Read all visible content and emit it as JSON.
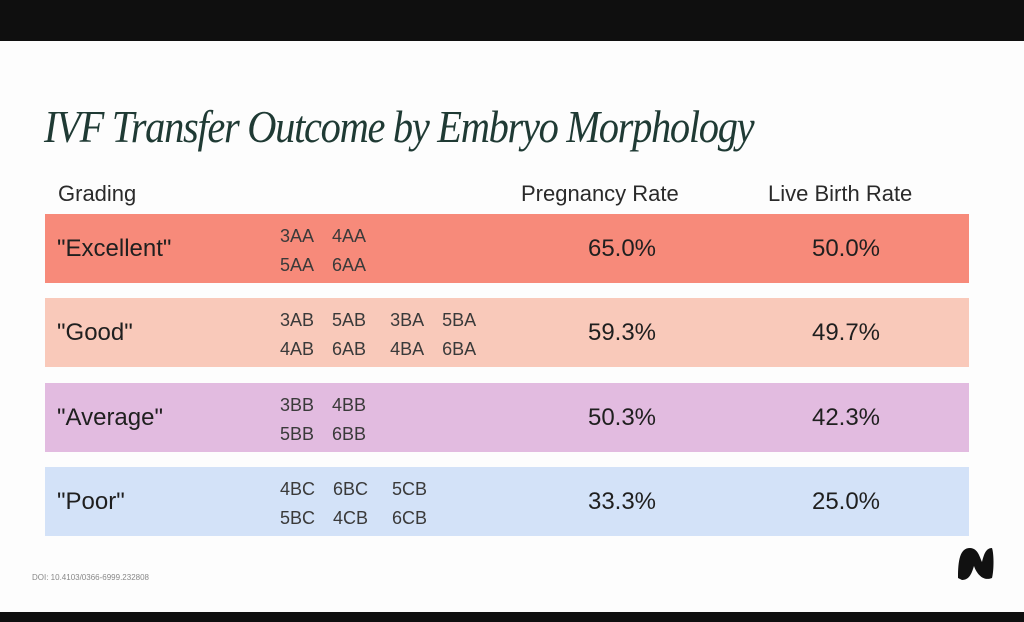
{
  "title": "IVF Transfer Outcome by Embryo Morphology",
  "headers": {
    "grading": "Grading",
    "pregnancy_rate": "Pregnancy Rate",
    "live_birth_rate": "Live Birth Rate"
  },
  "rows": [
    {
      "label": "\"Excellent\"",
      "color": "#f78a7a",
      "grade_lines": [
        [
          "3AA",
          "4AA"
        ],
        [
          "5AA",
          "6AA"
        ]
      ],
      "pregnancy_rate": "65.0%",
      "live_birth_rate": "50.0%"
    },
    {
      "label": "\"Good\"",
      "color": "#f9c9ba",
      "grade_lines": [
        [
          "3AB",
          "5AB",
          "3BA",
          "5BA"
        ],
        [
          "4AB",
          "6AB",
          "4BA",
          "6BA"
        ]
      ],
      "pregnancy_rate": "59.3%",
      "live_birth_rate": "49.7%"
    },
    {
      "label": "\"Average\"",
      "color": "#e2bbe0",
      "grade_lines": [
        [
          "3BB",
          "4BB"
        ],
        [
          "5BB",
          "6BB"
        ]
      ],
      "pregnancy_rate": "50.3%",
      "live_birth_rate": "42.3%"
    },
    {
      "label": "\"Poor\"",
      "color": "#d3e2f8",
      "grade_lines": [
        [
          "4BC",
          "6BC",
          "5CB"
        ],
        [
          "5BC",
          "4CB",
          "6CB"
        ]
      ],
      "pregnancy_rate": "33.3%",
      "live_birth_rate": "25.0%"
    }
  ],
  "footer": {
    "doi": "DOI: 10.4103/0366-6999.232808",
    "logo_icon": "brand-logo-icon"
  }
}
